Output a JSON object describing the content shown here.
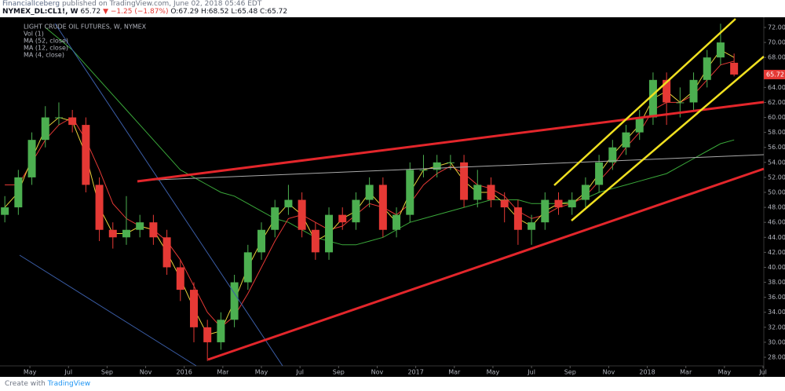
{
  "header": {
    "publisher": "FinancialIceberg",
    "published": "published on TradingView.com, June 02, 2018 05:46 EDT",
    "symbol": "NYMEX_DL:CL1!, W",
    "last": "65.72",
    "change": "▼ −1.25 (−1.87%)",
    "ohlc": "O:67.29 H:68.52 L:65.48 C:65.72"
  },
  "footer": {
    "create": "Create with",
    "brand": "TradingView"
  },
  "chart_data": {
    "type": "candlestick",
    "title": "LIGHT CRUDE OIL FUTURES, W, NYMEX",
    "volume_label": "Vol (1)",
    "up_color": "#4caf50",
    "down_color": "#e53935",
    "grid": false,
    "x": [
      2.7,
      3.4,
      4.1,
      4.8,
      5.5,
      6.2,
      6.9,
      7.6,
      8.3,
      9,
      9.7,
      10.4,
      11.1,
      11.8,
      12.5,
      13.2,
      13.9,
      14.6,
      15.3,
      16,
      16.7,
      17.4,
      18.1,
      18.8,
      19.5,
      20.2,
      20.9,
      21.6,
      22.3,
      23,
      23.7,
      24.4,
      25.1,
      25.8,
      26.5,
      27.2,
      27.9,
      28.6,
      29.3,
      30,
      30.7,
      31.4,
      32.1,
      32.8,
      33.5,
      34.2,
      34.9,
      35.6,
      36.3,
      37,
      37.7,
      38.4,
      39.1,
      39.8,
      40.5
    ],
    "open": [
      47,
      48,
      52,
      57,
      60,
      60,
      59,
      51,
      45,
      44,
      45,
      46,
      44,
      40,
      37,
      32,
      30,
      33,
      38,
      42,
      45,
      48,
      49,
      45,
      42,
      47,
      46,
      49,
      51,
      45,
      47,
      53,
      53,
      54,
      54,
      49,
      51,
      49,
      48,
      45,
      46,
      49,
      48,
      49,
      51,
      54,
      56,
      58,
      60,
      65,
      62,
      62,
      65,
      68,
      67.29
    ],
    "high": [
      49.5,
      53,
      58,
      61.5,
      62,
      61,
      60,
      52,
      46,
      49.5,
      47,
      47,
      45,
      41,
      38,
      33,
      34,
      39,
      43,
      46,
      49,
      51,
      50,
      46,
      48,
      48,
      50,
      52,
      52,
      48,
      54,
      55,
      55,
      55,
      55,
      53,
      52,
      50,
      49,
      47,
      50,
      50,
      50,
      52,
      55,
      57,
      59,
      61,
      66,
      66,
      64,
      66,
      69,
      72.5,
      68.52
    ],
    "low": [
      46,
      47,
      51,
      56,
      59,
      58,
      50,
      43.5,
      42.5,
      43,
      44,
      43,
      39,
      35.5,
      30,
      27.5,
      29,
      32,
      37,
      41,
      44,
      47,
      44,
      41,
      41,
      45,
      45,
      48,
      44,
      44,
      46,
      52,
      52,
      53,
      48,
      48,
      48,
      46,
      43,
      43,
      45,
      47,
      47,
      48,
      50,
      53,
      55,
      57,
      59,
      59,
      60,
      61,
      64,
      67,
      65.48
    ],
    "close": [
      48,
      52,
      57,
      60,
      60,
      59,
      51,
      45,
      44,
      45,
      46,
      44,
      40,
      37,
      32,
      30,
      33,
      38,
      42,
      45,
      48,
      49,
      45,
      42,
      47,
      46,
      49,
      51,
      45,
      47,
      53,
      53,
      54,
      54,
      49,
      51,
      49,
      48,
      45,
      46,
      49,
      48,
      49,
      51,
      54,
      56,
      58,
      60,
      65,
      62,
      62,
      65,
      68,
      70,
      65.72
    ],
    "series": [
      {
        "name": "MA (52, close)",
        "color": "#3aa83a",
        "values": [
          null,
          null,
          null,
          72,
          70.5,
          69,
          67,
          65,
          63,
          61,
          59,
          57,
          55,
          53,
          52,
          51,
          50,
          49.5,
          48.5,
          47.5,
          46.5,
          46,
          45,
          44,
          43.5,
          43,
          43,
          43.5,
          44,
          45,
          46,
          46.5,
          47,
          47.5,
          48,
          48.5,
          49,
          49,
          49,
          48.5,
          48.5,
          48.5,
          48.8,
          49.2,
          50,
          50.5,
          51,
          51.5,
          52,
          52.5,
          53.5,
          54.5,
          55.5,
          56.5,
          57
        ]
      },
      {
        "name": "MA (12, close)",
        "color": "#e53935",
        "values": [
          51,
          51,
          54,
          57,
          59,
          60,
          57,
          53,
          48.5,
          46.5,
          45.5,
          45,
          43.5,
          41,
          37.5,
          34,
          32,
          33.5,
          36.5,
          40,
          43.5,
          46.5,
          47,
          46,
          45,
          45.5,
          47,
          48.5,
          48,
          47,
          48.5,
          51,
          52.5,
          53.5,
          52.5,
          51,
          50.5,
          49.5,
          47.5,
          46.5,
          47,
          48,
          48.5,
          49.5,
          51.5,
          53.5,
          56,
          58,
          61,
          62,
          62,
          63,
          65,
          67,
          67.5
        ]
      },
      {
        "name": "MA (4, close)",
        "color": "#e8d23a",
        "values": [
          48,
          50,
          54.5,
          58.5,
          60,
          59.5,
          55,
          48,
          44.5,
          44.5,
          45.5,
          45,
          42,
          38.5,
          34.5,
          31,
          31.5,
          35.5,
          40,
          43.5,
          46.5,
          48.5,
          47,
          43.5,
          44.5,
          46.5,
          47.5,
          50,
          48,
          46,
          50,
          53,
          53.5,
          54,
          51.5,
          50,
          50,
          48.5,
          46.5,
          45.5,
          47.5,
          48.5,
          48.5,
          50,
          52.5,
          55,
          57,
          59,
          62.5,
          63.5,
          62,
          63.5,
          66.5,
          69,
          68
        ]
      }
    ],
    "xlim": [
      2.45,
      42.04
    ],
    "ylim": [
      26.85,
      73.36
    ],
    "xticks": [
      {
        "value": 4,
        "label": "May"
      },
      {
        "value": 6,
        "label": "Jul"
      },
      {
        "value": 8,
        "label": "Sep"
      },
      {
        "value": 10,
        "label": "Nov"
      },
      {
        "value": 12,
        "label": "2016"
      },
      {
        "value": 14,
        "label": "Mar"
      },
      {
        "value": 16,
        "label": "May"
      },
      {
        "value": 18,
        "label": "Jul"
      },
      {
        "value": 20,
        "label": "Sep"
      },
      {
        "value": 22,
        "label": "Nov"
      },
      {
        "value": 24,
        "label": "2017"
      },
      {
        "value": 26,
        "label": "Mar"
      },
      {
        "value": 28,
        "label": "May"
      },
      {
        "value": 30,
        "label": "Jul"
      },
      {
        "value": 32,
        "label": "Sep"
      },
      {
        "value": 34,
        "label": "Nov"
      },
      {
        "value": 36,
        "label": "2018"
      },
      {
        "value": 38,
        "label": "Mar"
      },
      {
        "value": 40,
        "label": "May"
      },
      {
        "value": 42,
        "label": "Jul"
      }
    ],
    "yticks": [
      {
        "value": 28,
        "label": "28.00"
      },
      {
        "value": 30,
        "label": "30.00"
      },
      {
        "value": 32,
        "label": "32.00"
      },
      {
        "value": 34,
        "label": "34.00"
      },
      {
        "value": 36,
        "label": "36.00"
      },
      {
        "value": 38,
        "label": "38.00"
      },
      {
        "value": 40,
        "label": "40.00"
      },
      {
        "value": 42,
        "label": "42.00"
      },
      {
        "value": 44,
        "label": "44.00"
      },
      {
        "value": 46,
        "label": "46.00"
      },
      {
        "value": 48,
        "label": "48.00"
      },
      {
        "value": 50,
        "label": "50.00"
      },
      {
        "value": 52,
        "label": "52.00"
      },
      {
        "value": 54,
        "label": "54.00"
      },
      {
        "value": 56,
        "label": "56.00"
      },
      {
        "value": 58,
        "label": "58.00"
      },
      {
        "value": 60,
        "label": "60.00"
      },
      {
        "value": 62,
        "label": "62.00"
      },
      {
        "value": 64,
        "label": "64.00"
      },
      {
        "value": 66,
        "label": "66.00"
      },
      {
        "value": 68,
        "label": "68.00"
      },
      {
        "value": 70,
        "label": "70.00"
      },
      {
        "value": 72,
        "label": "72.00"
      }
    ]
  }
}
